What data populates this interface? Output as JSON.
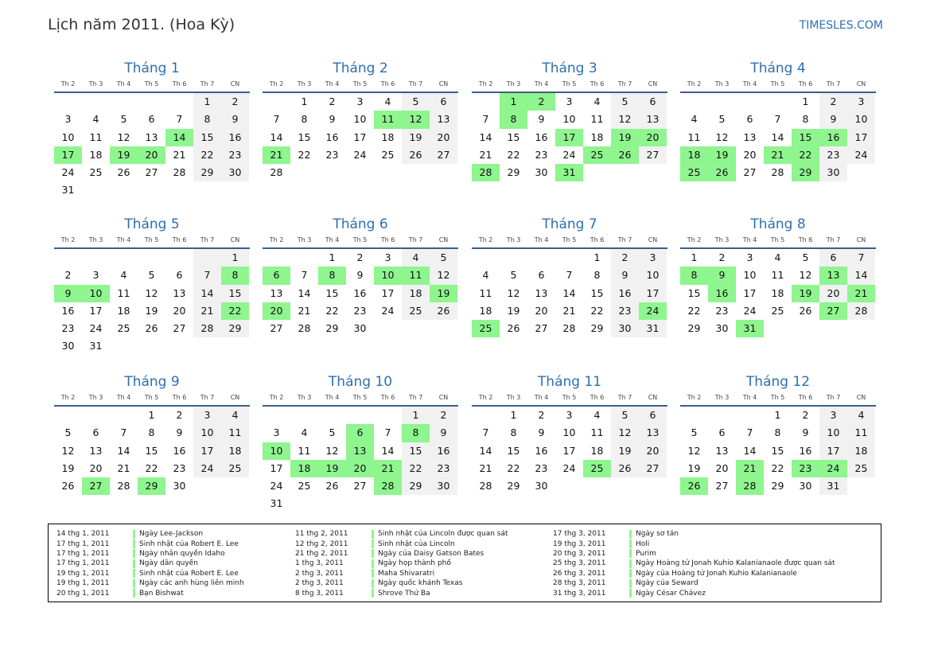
{
  "title": "Lịch năm 2011. (Hoa Kỳ)",
  "brand": "TIMESLES.COM",
  "weekday_labels": [
    "Th 2",
    "Th 3",
    "Th 4",
    "Th 5",
    "Th 6",
    "Th 7",
    "CN"
  ],
  "colors": {
    "highlight": "#8ff58f",
    "weekend": "#f1f1f1",
    "accent": "#2e6fb0"
  },
  "months": [
    {
      "name": "Tháng 1",
      "offset": 5,
      "days": 31,
      "highlights": [
        14,
        17,
        19,
        20
      ]
    },
    {
      "name": "Tháng 2",
      "offset": 1,
      "days": 28,
      "highlights": [
        11,
        12,
        21
      ]
    },
    {
      "name": "Tháng 3",
      "offset": 1,
      "days": 31,
      "highlights": [
        1,
        2,
        8,
        17,
        19,
        20,
        25,
        26,
        28,
        31
      ]
    },
    {
      "name": "Tháng 4",
      "offset": 4,
      "days": 30,
      "highlights": [
        15,
        16,
        18,
        19,
        21,
        22,
        25,
        26,
        29
      ]
    },
    {
      "name": "Tháng 5",
      "offset": 6,
      "days": 31,
      "highlights": [
        8,
        9,
        10,
        22
      ]
    },
    {
      "name": "Tháng 6",
      "offset": 2,
      "days": 30,
      "highlights": [
        6,
        8,
        10,
        11,
        19,
        20
      ]
    },
    {
      "name": "Tháng 7",
      "offset": 4,
      "days": 31,
      "highlights": [
        24,
        25
      ]
    },
    {
      "name": "Tháng 8",
      "offset": 0,
      "days": 31,
      "highlights": [
        8,
        9,
        13,
        16,
        19,
        21,
        27,
        31
      ]
    },
    {
      "name": "Tháng 9",
      "offset": 3,
      "days": 30,
      "highlights": [
        27,
        29
      ]
    },
    {
      "name": "Tháng 10",
      "offset": 5,
      "days": 31,
      "highlights": [
        6,
        8,
        10,
        13,
        18,
        19,
        20,
        21,
        28
      ]
    },
    {
      "name": "Tháng 11",
      "offset": 1,
      "days": 30,
      "highlights": [
        25
      ]
    },
    {
      "name": "Tháng 12",
      "offset": 3,
      "days": 31,
      "highlights": [
        21,
        23,
        24,
        26,
        28
      ]
    }
  ],
  "legend": [
    [
      {
        "date": "14 thg 1, 2011",
        "name": "Ngày Lee-Jackson"
      },
      {
        "date": "17 thg 1, 2011",
        "name": "Sinh nhật của Robert E. Lee"
      },
      {
        "date": "17 thg 1, 2011",
        "name": "Ngày nhân quyền Idaho"
      },
      {
        "date": "17 thg 1, 2011",
        "name": "Ngày dân quyền"
      },
      {
        "date": "19 thg 1, 2011",
        "name": "Sinh nhật của Robert E. Lee"
      },
      {
        "date": "19 thg 1, 2011",
        "name": "Ngày các anh hùng liên minh"
      },
      {
        "date": "20 thg 1, 2011",
        "name": "Bạn Bishwat"
      }
    ],
    [
      {
        "date": "11 thg 2, 2011",
        "name": "Sinh nhật của Lincoln được quan sát"
      },
      {
        "date": "12 thg 2, 2011",
        "name": "Sinh nhật của Lincoln"
      },
      {
        "date": "21 thg 2, 2011",
        "name": "Ngày của Daisy Gatson Bates"
      },
      {
        "date": "1 thg 3, 2011",
        "name": "Ngày họp thành phố"
      },
      {
        "date": "2 thg 3, 2011",
        "name": "Maha Shivaratri"
      },
      {
        "date": "2 thg 3, 2011",
        "name": "Ngày quốc khánh Texas"
      },
      {
        "date": "8 thg 3, 2011",
        "name": "Shrove Thứ Ba"
      }
    ],
    [
      {
        "date": "17 thg 3, 2011",
        "name": "Ngày sơ tán"
      },
      {
        "date": "19 thg 3, 2011",
        "name": "Holi"
      },
      {
        "date": "20 thg 3, 2011",
        "name": "Purim"
      },
      {
        "date": "25 thg 3, 2011",
        "name": "Ngày Hoàng tử Jonah Kuhio Kalanianaole được quan sát"
      },
      {
        "date": "26 thg 3, 2011",
        "name": "Ngày của Hoàng tử Jonah Kuhio Kalanianaole"
      },
      {
        "date": "28 thg 3, 2011",
        "name": "Ngày của Seward"
      },
      {
        "date": "31 thg 3, 2011",
        "name": "Ngày César Chávez"
      }
    ]
  ]
}
